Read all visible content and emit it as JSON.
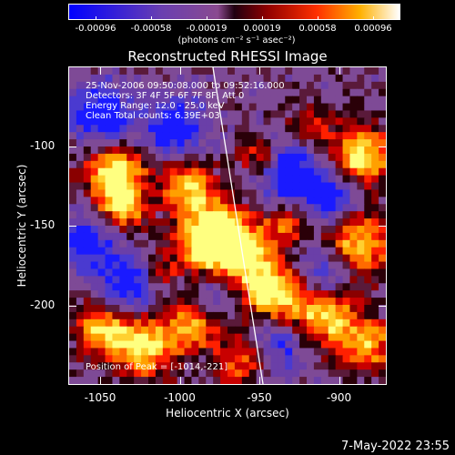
{
  "colorbar": {
    "tick_labels": [
      "-0.00096",
      "-0.00058",
      "-0.00019",
      "0.00019",
      "0.00058",
      "0.00096"
    ],
    "units_label": "(photons cm⁻² s⁻¹ asec⁻²)"
  },
  "image": {
    "title": "Reconstructed RHESSI Image",
    "annotations": [
      "25-Nov-2006 09:50:08.000 to 09:52:16.000",
      "Detectors: 3F 4F 5F 6F 7F 8F, Att 0",
      "Energy Range: 12.0 - 25.0 keV",
      "Clean     Total counts: 6.39E+03"
    ],
    "peak_label": "Position of Peak = [-1014,-221]",
    "xaxis": {
      "label": "Heliocentric X (arcsec)",
      "ticks": [
        {
          "label": "-1050",
          "value": -1050
        },
        {
          "label": "-1000",
          "value": -1000
        },
        {
          "label": "-950",
          "value": -950
        },
        {
          "label": "-900",
          "value": -900
        }
      ],
      "range": [
        -1070,
        -870
      ]
    },
    "yaxis": {
      "label": "Heliocentric Y (arcsec)",
      "ticks": [
        {
          "label": "-100",
          "value": -100
        },
        {
          "label": "-150",
          "value": -150
        },
        {
          "label": "-200",
          "value": -200
        }
      ],
      "range": [
        -250,
        -50
      ]
    },
    "colors": {
      "negative": "#1a1aff",
      "mid": "#7a4fa0",
      "positive_low": "#c00000",
      "positive_high": "#ffff40"
    }
  },
  "footer": {
    "timestamp": "7-May-2022 23:55"
  }
}
